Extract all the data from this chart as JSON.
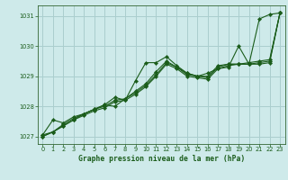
{
  "title": "Graphe pression niveau de la mer (hPa)",
  "background_color": "#ceeaea",
  "grid_color": "#aacece",
  "line_color": "#1a5c1a",
  "marker_color": "#1a5c1a",
  "xlim": [
    -0.5,
    23.5
  ],
  "ylim": [
    1026.75,
    1031.35
  ],
  "yticks": [
    1027,
    1028,
    1029,
    1030,
    1031
  ],
  "xticks": [
    0,
    1,
    2,
    3,
    4,
    5,
    6,
    7,
    8,
    9,
    10,
    11,
    12,
    13,
    14,
    15,
    16,
    17,
    18,
    19,
    20,
    21,
    22,
    23
  ],
  "series": [
    [
      1027.05,
      1027.55,
      1027.45,
      1027.65,
      1027.75,
      1027.9,
      1028.05,
      1028.3,
      1028.2,
      1028.85,
      1029.45,
      1029.45,
      1029.65,
      1029.35,
      1029.1,
      1029.0,
      1029.1,
      1029.25,
      1029.3,
      1030.0,
      1029.4,
      1030.9,
      1031.05,
      1031.1
    ],
    [
      1027.05,
      1027.15,
      1027.4,
      1027.6,
      1027.75,
      1027.9,
      1028.05,
      1028.0,
      1028.25,
      1028.5,
      1028.75,
      1029.15,
      1029.5,
      1029.3,
      1029.1,
      1029.0,
      1029.0,
      1029.35,
      1029.4,
      1029.4,
      1029.45,
      1029.5,
      1029.55,
      1031.1
    ],
    [
      1027.0,
      1027.15,
      1027.35,
      1027.55,
      1027.75,
      1027.9,
      1028.0,
      1028.2,
      1028.25,
      1028.45,
      1028.7,
      1029.05,
      1029.45,
      1029.3,
      1029.05,
      1029.0,
      1028.95,
      1029.3,
      1029.4,
      1029.4,
      1029.4,
      1029.45,
      1029.5,
      1031.1
    ],
    [
      1027.0,
      1027.15,
      1027.35,
      1027.55,
      1027.7,
      1027.85,
      1027.95,
      1028.15,
      1028.2,
      1028.4,
      1028.65,
      1029.0,
      1029.4,
      1029.25,
      1029.0,
      1028.95,
      1028.9,
      1029.25,
      1029.35,
      1029.4,
      1029.4,
      1029.4,
      1029.45,
      1031.1
    ]
  ]
}
